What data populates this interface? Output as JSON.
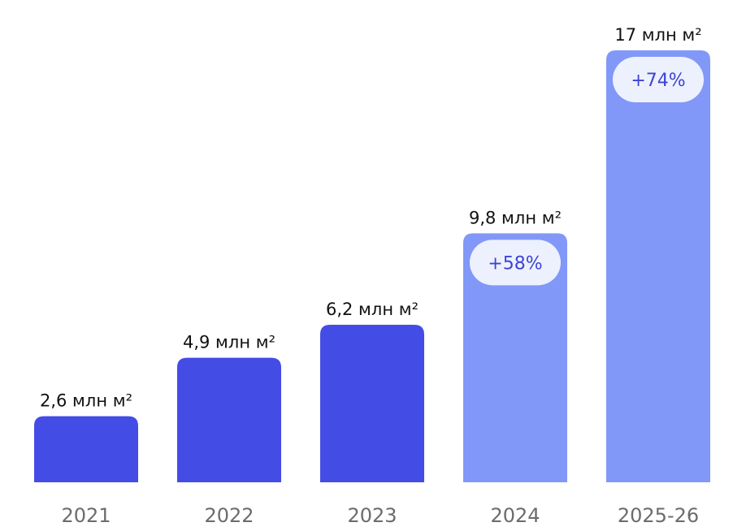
{
  "chart_data": {
    "type": "bar",
    "categories": [
      "2021",
      "2022",
      "2023",
      "2024",
      "2025-26"
    ],
    "values": [
      2.6,
      4.9,
      6.2,
      9.8,
      17
    ],
    "value_labels": [
      "2,6 млн м²",
      "4,9 млн м²",
      "6,2 млн м²",
      "9,8 млн м²",
      "17 млн м²"
    ],
    "unit": "млн м²",
    "kind": [
      "actual",
      "actual",
      "actual",
      "forecast",
      "forecast"
    ],
    "growth_badges": [
      "",
      "",
      "",
      "+58%",
      "+74%"
    ],
    "ylim": [
      0,
      17
    ],
    "grid": false,
    "legend": "none",
    "colors": {
      "actual": "#444ce6",
      "forecast": "#8198f8",
      "badge_bg": "#edf1fe",
      "badge_text": "#3d43d6",
      "value_text": "#111111",
      "category_text": "#6b6b70"
    }
  }
}
